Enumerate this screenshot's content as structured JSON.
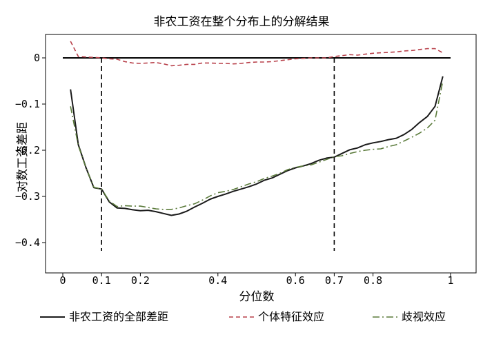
{
  "chart_data": {
    "type": "line",
    "title": "非农工资在整个分布上的分解结果",
    "xlabel": "分位数",
    "ylabel": "对数工资差距",
    "xlim": [
      0,
      1
    ],
    "ylim": [
      -0.4,
      0
    ],
    "x_ticks": [
      {
        "value": 0,
        "label": "0"
      },
      {
        "value": 0.1,
        "label": "0.1"
      },
      {
        "value": 0.2,
        "label": "0.2"
      },
      {
        "value": 0.4,
        "label": "0.4"
      },
      {
        "value": 0.6,
        "label": "0.6"
      },
      {
        "value": 0.7,
        "label": "0.7"
      },
      {
        "value": 0.8,
        "label": "0.8"
      },
      {
        "value": 1,
        "label": "1"
      }
    ],
    "y_ticks": [
      {
        "value": 0,
        "label": "0"
      },
      {
        "value": -0.1,
        "label": "−0.1"
      },
      {
        "value": -0.2,
        "label": "−0.2"
      },
      {
        "value": -0.3,
        "label": "−0.3"
      },
      {
        "value": -0.4,
        "label": "−0.4"
      }
    ],
    "reference_lines": {
      "horizontal_y": 0,
      "vertical_x": [
        0.1,
        0.7
      ]
    },
    "grid": false,
    "legend_position": "bottom",
    "series": [
      {
        "name": "非农工资的全部差距",
        "color": "#1a1a1a",
        "style": "solid",
        "x": [
          0.02,
          0.04,
          0.06,
          0.08,
          0.1,
          0.12,
          0.14,
          0.16,
          0.18,
          0.2,
          0.22,
          0.24,
          0.26,
          0.28,
          0.3,
          0.32,
          0.34,
          0.36,
          0.38,
          0.4,
          0.42,
          0.44,
          0.46,
          0.48,
          0.5,
          0.52,
          0.54,
          0.56,
          0.58,
          0.6,
          0.62,
          0.64,
          0.66,
          0.68,
          0.7,
          0.72,
          0.74,
          0.76,
          0.78,
          0.8,
          0.82,
          0.84,
          0.86,
          0.88,
          0.9,
          0.92,
          0.94,
          0.96,
          0.98
        ],
        "values": [
          -0.068,
          -0.188,
          -0.238,
          -0.281,
          -0.284,
          -0.312,
          -0.325,
          -0.326,
          -0.329,
          -0.331,
          -0.33,
          -0.333,
          -0.337,
          -0.341,
          -0.338,
          -0.332,
          -0.323,
          -0.315,
          -0.306,
          -0.3,
          -0.295,
          -0.289,
          -0.284,
          -0.279,
          -0.273,
          -0.265,
          -0.26,
          -0.252,
          -0.244,
          -0.238,
          -0.234,
          -0.229,
          -0.222,
          -0.217,
          -0.215,
          -0.207,
          -0.199,
          -0.195,
          -0.188,
          -0.184,
          -0.181,
          -0.177,
          -0.174,
          -0.166,
          -0.155,
          -0.14,
          -0.127,
          -0.105,
          -0.04
        ]
      },
      {
        "name": "个体特征效应",
        "color": "#b8404a",
        "style": "dashed",
        "x": [
          0.02,
          0.04,
          0.06,
          0.08,
          0.1,
          0.12,
          0.14,
          0.16,
          0.18,
          0.2,
          0.22,
          0.24,
          0.26,
          0.28,
          0.3,
          0.32,
          0.34,
          0.36,
          0.38,
          0.4,
          0.42,
          0.44,
          0.46,
          0.48,
          0.5,
          0.52,
          0.54,
          0.56,
          0.58,
          0.6,
          0.62,
          0.64,
          0.66,
          0.68,
          0.7,
          0.72,
          0.74,
          0.76,
          0.78,
          0.8,
          0.82,
          0.84,
          0.86,
          0.88,
          0.9,
          0.92,
          0.94,
          0.96,
          0.98
        ],
        "values": [
          0.036,
          0.003,
          0.002,
          0.001,
          0.0,
          -0.002,
          -0.003,
          -0.008,
          -0.011,
          -0.012,
          -0.011,
          -0.01,
          -0.013,
          -0.017,
          -0.016,
          -0.014,
          -0.014,
          -0.011,
          -0.011,
          -0.012,
          -0.012,
          -0.013,
          -0.012,
          -0.01,
          -0.009,
          -0.009,
          -0.008,
          -0.006,
          -0.004,
          -0.002,
          -0.001,
          0.0,
          0.0,
          0.0,
          0.003,
          0.005,
          0.007,
          0.006,
          0.008,
          0.01,
          0.011,
          0.012,
          0.013,
          0.015,
          0.016,
          0.018,
          0.02,
          0.02,
          0.011
        ]
      },
      {
        "name": "歧视效应",
        "color": "#5a7a3a",
        "style": "dashdot",
        "x": [
          0.02,
          0.04,
          0.06,
          0.08,
          0.1,
          0.12,
          0.14,
          0.16,
          0.18,
          0.2,
          0.22,
          0.24,
          0.26,
          0.28,
          0.3,
          0.32,
          0.34,
          0.36,
          0.38,
          0.4,
          0.42,
          0.44,
          0.46,
          0.48,
          0.5,
          0.52,
          0.54,
          0.56,
          0.58,
          0.6,
          0.62,
          0.64,
          0.66,
          0.68,
          0.7,
          0.72,
          0.74,
          0.76,
          0.78,
          0.8,
          0.82,
          0.84,
          0.86,
          0.88,
          0.9,
          0.92,
          0.94,
          0.96,
          0.98
        ],
        "values": [
          -0.105,
          -0.19,
          -0.238,
          -0.28,
          -0.284,
          -0.31,
          -0.322,
          -0.32,
          -0.321,
          -0.321,
          -0.324,
          -0.327,
          -0.328,
          -0.328,
          -0.325,
          -0.32,
          -0.316,
          -0.308,
          -0.299,
          -0.292,
          -0.289,
          -0.285,
          -0.279,
          -0.273,
          -0.268,
          -0.261,
          -0.256,
          -0.25,
          -0.242,
          -0.237,
          -0.234,
          -0.232,
          -0.226,
          -0.22,
          -0.214,
          -0.212,
          -0.207,
          -0.203,
          -0.2,
          -0.198,
          -0.197,
          -0.192,
          -0.188,
          -0.18,
          -0.172,
          -0.163,
          -0.152,
          -0.135,
          -0.05
        ]
      }
    ]
  }
}
